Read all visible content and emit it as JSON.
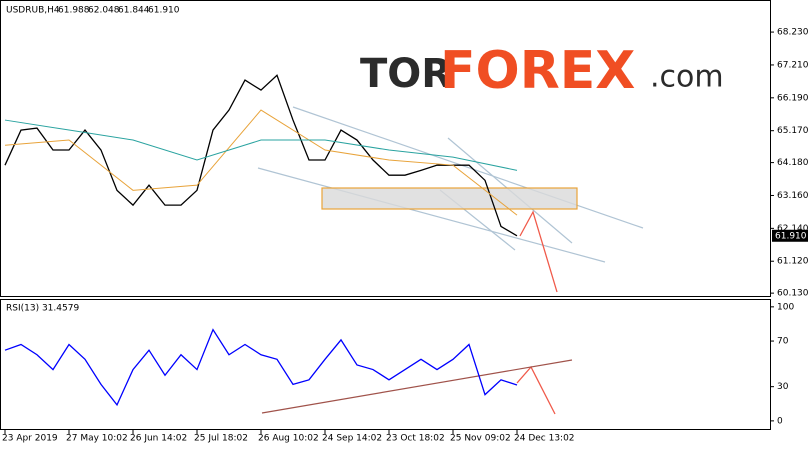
{
  "logo": {
    "part1": "TOR",
    "part2": "FOREX",
    "part3": ".com"
  },
  "chart_data": [
    {
      "type": "line",
      "title": "USDRUB,H4",
      "ohlc": [
        "61.988",
        "62.048",
        "61.844",
        "61.910"
      ],
      "last_label": "61.910",
      "series": [
        {
          "color": "#000000",
          "values": [
            64.1,
            65.19,
            65.25,
            64.57,
            64.57,
            65.19,
            64.57,
            63.32,
            62.86,
            63.48,
            62.86,
            62.86,
            63.32,
            65.19,
            65.81,
            66.74,
            66.43,
            66.89,
            65.5,
            64.26,
            64.26,
            65.19,
            64.88,
            64.26,
            63.79,
            63.79,
            63.94,
            64.1,
            64.1,
            64.1,
            63.63,
            62.2,
            61.91
          ]
        },
        {
          "color": "#e8a33a",
          "x": [
            0,
            4,
            8,
            12,
            16,
            20,
            24,
            28,
            32
          ],
          "values": [
            64.72,
            64.88,
            63.32,
            63.48,
            65.81,
            64.57,
            64.26,
            64.1,
            62.55
          ]
        },
        {
          "color": "#2aa3a0",
          "x": [
            0,
            4,
            8,
            12,
            16,
            20,
            24,
            28,
            32
          ],
          "values": [
            65.5,
            65.19,
            64.88,
            64.26,
            64.88,
            64.88,
            64.57,
            64.35,
            63.94
          ]
        }
      ],
      "ylim": [
        60.01,
        69.07
      ],
      "yticks": [
        {
          "value": 60.13,
          "label": "60.130"
        },
        {
          "value": 61.12,
          "label": "61.120"
        },
        {
          "value": 62.14,
          "label": "62.140"
        },
        {
          "value": 63.16,
          "label": "63.160"
        },
        {
          "value": 64.18,
          "label": "64.180"
        },
        {
          "value": 65.17,
          "label": "65.170"
        },
        {
          "value": 66.19,
          "label": "66.190"
        },
        {
          "value": 67.21,
          "label": "67.210"
        },
        {
          "value": 68.23,
          "label": "68.230"
        }
      ]
    },
    {
      "type": "line",
      "title": "RSI(13) 31.4579",
      "categories": [
        "23 Apr 2019",
        null,
        null,
        null,
        "27 May 10:02",
        null,
        null,
        null,
        "26 Jun 14:02",
        null,
        null,
        null,
        "25 Jul 18:02",
        null,
        null,
        null,
        "26 Aug 10:02",
        null,
        null,
        null,
        "24 Sep 14:02",
        null,
        null,
        null,
        "23 Oct 18:02",
        null,
        null,
        null,
        "25 Nov 09:02",
        null,
        null,
        null,
        "24 Dec 13:02"
      ],
      "series": [
        {
          "color": "#0000ff",
          "values": [
            62,
            67,
            58,
            45,
            67,
            54,
            32,
            14,
            45,
            62,
            40,
            58,
            45,
            80,
            58,
            67,
            58,
            54,
            32,
            36,
            54,
            71,
            49,
            45,
            36,
            45,
            54,
            45,
            54,
            67,
            23,
            36,
            31.4579
          ]
        }
      ],
      "ylim": [
        -8,
        106
      ],
      "yticks": [
        0,
        30,
        70,
        100
      ]
    }
  ]
}
